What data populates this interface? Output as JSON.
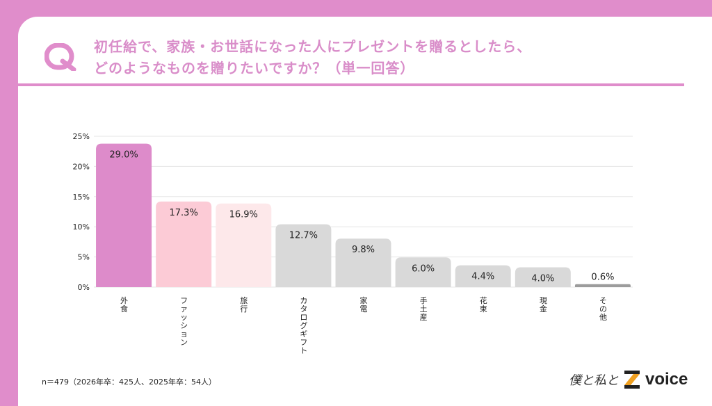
{
  "header": {
    "title_line1": "初任給で、家族・お世話になった人にプレゼントを贈るとしたら、",
    "title_line2": "どのようなものを贈りたいですか？（単一回答）",
    "icon": "q-letter-icon",
    "accent": "#df8dcb"
  },
  "chart_data": {
    "type": "bar",
    "categories": [
      "外食",
      "ファッション",
      "旅行",
      "カタログギフト",
      "家電",
      "手土産",
      "花束",
      "現金",
      "その他"
    ],
    "values": [
      29.0,
      17.3,
      16.9,
      12.7,
      9.8,
      6.0,
      4.4,
      4.0,
      0.6
    ],
    "data_labels": [
      "29.0%",
      "17.3%",
      "16.9%",
      "12.7%",
      "9.8%",
      "6.0%",
      "4.4%",
      "4.0%",
      "0.6%"
    ],
    "yticks": [
      "0%",
      "5%",
      "10%",
      "15%",
      "20%",
      "25%"
    ],
    "ylim": [
      0,
      25
    ],
    "grid": true,
    "colors": [
      "#dd8bca",
      "#fccbd6",
      "#fde8ea",
      "#d9d9d9",
      "#d9d9d9",
      "#d9d9d9",
      "#d9d9d9",
      "#d9d9d9",
      "#9c9c9c"
    ]
  },
  "footer": {
    "note": "n＝479（2026年卒：425人、2025年卒：54人）",
    "logo_text": "僕と私と",
    "brand": "Z",
    "brand_word": "voice"
  }
}
